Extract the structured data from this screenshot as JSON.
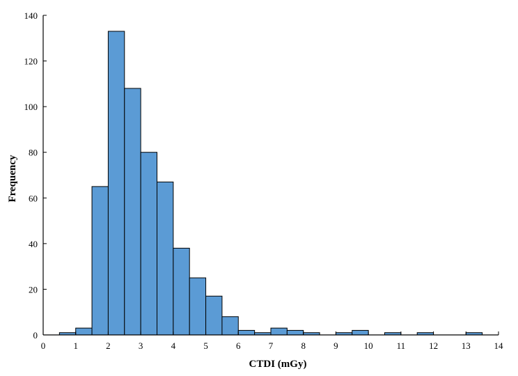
{
  "chart_data": {
    "type": "bar",
    "xlabel": "CTDI (mGy)",
    "ylabel": "Frequency",
    "bin_width": 0.5,
    "bin_starts": [
      0.5,
      1.0,
      1.5,
      2.0,
      2.5,
      3.0,
      3.5,
      4.0,
      4.5,
      5.0,
      5.5,
      6.0,
      6.5,
      7.0,
      7.5,
      8.0,
      8.5,
      9.0,
      9.5,
      10.0,
      10.5,
      11.0,
      11.5,
      12.0,
      12.5,
      13.0
    ],
    "values": [
      1,
      3,
      65,
      133,
      108,
      80,
      67,
      38,
      25,
      17,
      8,
      2,
      1,
      3,
      2,
      1,
      0,
      1,
      2,
      0,
      1,
      0,
      1,
      0,
      0,
      1
    ],
    "xlim": [
      0,
      14
    ],
    "ylim": [
      0,
      140
    ],
    "xticks": [
      "0",
      "1",
      "2",
      "3",
      "4",
      "5",
      "6",
      "7",
      "8",
      "9",
      "10",
      "11",
      "12",
      "13",
      "14"
    ],
    "yticks": [
      "0",
      "20",
      "40",
      "60",
      "80",
      "100",
      "120",
      "140"
    ],
    "bar_color": "#5b9bd5",
    "grid": false
  }
}
